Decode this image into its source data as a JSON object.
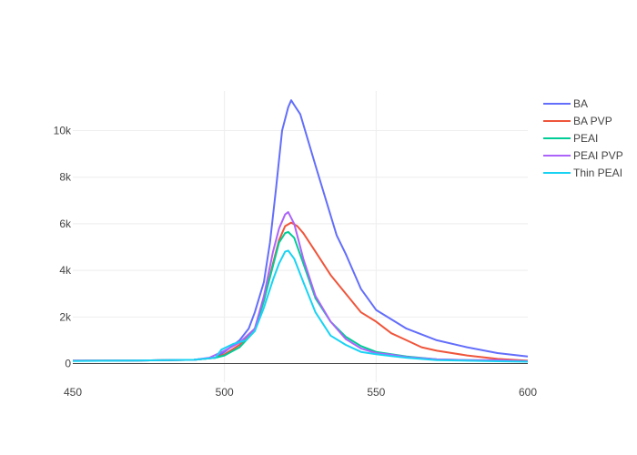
{
  "chart_data": {
    "type": "line",
    "title": "",
    "xlabel": "",
    "ylabel": "",
    "xlim": [
      450,
      600
    ],
    "ylim": [
      -800,
      11700
    ],
    "x_ticks": [
      450,
      500,
      550,
      600
    ],
    "x_tick_labels": [
      "450",
      "500",
      "550",
      "600"
    ],
    "y_ticks": [
      0,
      2000,
      4000,
      6000,
      8000,
      10000
    ],
    "y_tick_labels": [
      "0",
      "2k",
      "4k",
      "6k",
      "8k",
      "10k"
    ],
    "grid": true,
    "legend_position": "top-right",
    "series": [
      {
        "name": "BA",
        "color": "#636efa",
        "points": [
          [
            450,
            120
          ],
          [
            470,
            130
          ],
          [
            490,
            160
          ],
          [
            497,
            250
          ],
          [
            500,
            500
          ],
          [
            505,
            1000
          ],
          [
            508,
            1500
          ],
          [
            510,
            2200
          ],
          [
            513,
            3500
          ],
          [
            515,
            5200
          ],
          [
            517,
            7500
          ],
          [
            519,
            10000
          ],
          [
            521,
            11000
          ],
          [
            522,
            11300
          ],
          [
            523,
            11100
          ],
          [
            525,
            10700
          ],
          [
            530,
            8500
          ],
          [
            537,
            5500
          ],
          [
            540,
            4700
          ],
          [
            545,
            3200
          ],
          [
            550,
            2300
          ],
          [
            555,
            1900
          ],
          [
            560,
            1500
          ],
          [
            570,
            1000
          ],
          [
            580,
            700
          ],
          [
            590,
            450
          ],
          [
            600,
            300
          ]
        ]
      },
      {
        "name": "BA PVP",
        "color": "#ef553b",
        "points": [
          [
            450,
            120
          ],
          [
            470,
            130
          ],
          [
            490,
            160
          ],
          [
            497,
            250
          ],
          [
            500,
            400
          ],
          [
            505,
            800
          ],
          [
            510,
            1500
          ],
          [
            513,
            2700
          ],
          [
            516,
            4300
          ],
          [
            518,
            5300
          ],
          [
            520,
            5900
          ],
          [
            522,
            6050
          ],
          [
            524,
            5900
          ],
          [
            526,
            5600
          ],
          [
            530,
            4800
          ],
          [
            535,
            3800
          ],
          [
            540,
            3000
          ],
          [
            545,
            2200
          ],
          [
            550,
            1800
          ],
          [
            555,
            1300
          ],
          [
            560,
            1000
          ],
          [
            565,
            700
          ],
          [
            570,
            550
          ],
          [
            580,
            350
          ],
          [
            590,
            200
          ],
          [
            600,
            120
          ]
        ]
      },
      {
        "name": "PEAI",
        "color": "#00cc96",
        "points": [
          [
            450,
            120
          ],
          [
            470,
            130
          ],
          [
            490,
            160
          ],
          [
            497,
            250
          ],
          [
            500,
            350
          ],
          [
            505,
            700
          ],
          [
            510,
            1400
          ],
          [
            513,
            2700
          ],
          [
            516,
            4200
          ],
          [
            518,
            5200
          ],
          [
            520,
            5600
          ],
          [
            521,
            5650
          ],
          [
            523,
            5400
          ],
          [
            526,
            4300
          ],
          [
            530,
            2800
          ],
          [
            535,
            1800
          ],
          [
            540,
            1150
          ],
          [
            545,
            750
          ],
          [
            550,
            500
          ],
          [
            555,
            400
          ],
          [
            560,
            300
          ],
          [
            570,
            180
          ],
          [
            580,
            150
          ],
          [
            590,
            130
          ],
          [
            600,
            100
          ]
        ]
      },
      {
        "name": "PEAI PVP",
        "color": "#ab63fa",
        "points": [
          [
            450,
            120
          ],
          [
            470,
            130
          ],
          [
            490,
            160
          ],
          [
            495,
            250
          ],
          [
            500,
            550
          ],
          [
            505,
            900
          ],
          [
            510,
            1500
          ],
          [
            513,
            2900
          ],
          [
            516,
            4800
          ],
          [
            518,
            5800
          ],
          [
            520,
            6400
          ],
          [
            521,
            6500
          ],
          [
            523,
            6000
          ],
          [
            526,
            4500
          ],
          [
            530,
            2900
          ],
          [
            535,
            1800
          ],
          [
            540,
            1050
          ],
          [
            545,
            650
          ],
          [
            550,
            450
          ],
          [
            555,
            380
          ],
          [
            560,
            280
          ],
          [
            570,
            180
          ],
          [
            580,
            150
          ],
          [
            590,
            150
          ],
          [
            600,
            100
          ]
        ]
      },
      {
        "name": "Thin PEAI",
        "color": "#19d3f3",
        "points": [
          [
            450,
            110
          ],
          [
            470,
            130
          ],
          [
            490,
            160
          ],
          [
            497,
            250
          ],
          [
            499,
            600
          ],
          [
            503,
            850
          ],
          [
            507,
            1000
          ],
          [
            510,
            1400
          ],
          [
            513,
            2400
          ],
          [
            516,
            3600
          ],
          [
            518,
            4300
          ],
          [
            520,
            4800
          ],
          [
            521,
            4850
          ],
          [
            523,
            4500
          ],
          [
            526,
            3500
          ],
          [
            530,
            2200
          ],
          [
            535,
            1200
          ],
          [
            540,
            800
          ],
          [
            545,
            500
          ],
          [
            550,
            400
          ],
          [
            555,
            320
          ],
          [
            560,
            250
          ],
          [
            570,
            150
          ],
          [
            580,
            120
          ],
          [
            590,
            100
          ],
          [
            600,
            80
          ]
        ]
      }
    ]
  }
}
